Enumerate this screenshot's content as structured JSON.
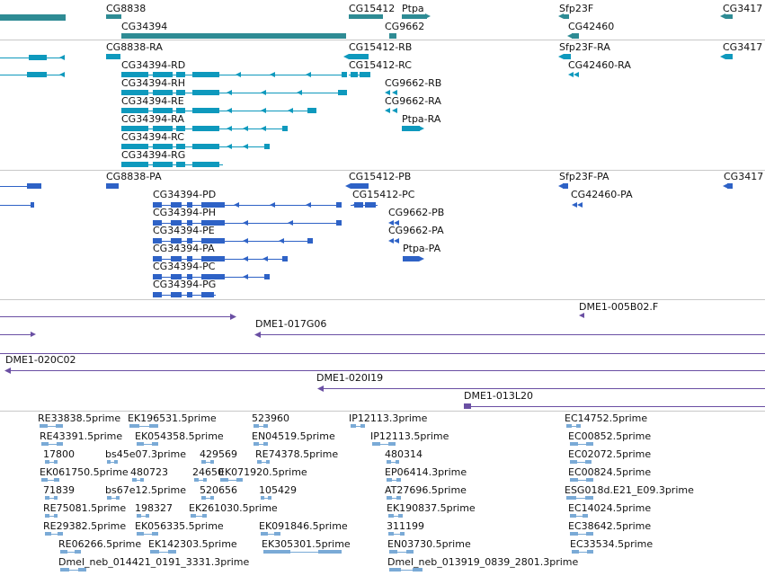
{
  "colors": {
    "gene": "#2e8b94",
    "mrna": "#0e99bd",
    "cds": "#2e62c6",
    "clone": "#6a4fa3",
    "est": "#7aaad6"
  },
  "tracks": {
    "gene": {
      "labels": [
        {
          "id": "cg8838",
          "text": "CG8838"
        },
        {
          "id": "cg15412",
          "text": "CG15412"
        },
        {
          "id": "ptpa",
          "text": "Ptpa"
        },
        {
          "id": "sfp23f",
          "text": "Sfp23F"
        },
        {
          "id": "cg3417",
          "text": "CG3417"
        },
        {
          "id": "cg34394",
          "text": "CG34394"
        },
        {
          "id": "cg9662",
          "text": "CG9662"
        },
        {
          "id": "cg42460",
          "text": "CG42460"
        }
      ]
    },
    "mrna": {
      "labels": [
        {
          "id": "cg8838-ra",
          "text": "CG8838-RA"
        },
        {
          "id": "cg15412-rb",
          "text": "CG15412-RB"
        },
        {
          "id": "sfp23f-ra",
          "text": "Sfp23F-RA"
        },
        {
          "id": "cg3417",
          "text": "CG3417"
        },
        {
          "id": "cg34394-rd",
          "text": "CG34394-RD"
        },
        {
          "id": "cg15412-rc",
          "text": "CG15412-RC"
        },
        {
          "id": "cg42460-ra",
          "text": "CG42460-RA"
        },
        {
          "id": "cg34394-rh",
          "text": "CG34394-RH"
        },
        {
          "id": "cg9662-rb",
          "text": "CG9662-RB"
        },
        {
          "id": "cg34394-re",
          "text": "CG34394-RE"
        },
        {
          "id": "cg9662-ra",
          "text": "CG9662-RA"
        },
        {
          "id": "cg34394-ra",
          "text": "CG34394-RA"
        },
        {
          "id": "ptpa-ra",
          "text": "Ptpa-RA"
        },
        {
          "id": "cg34394-rc",
          "text": "CG34394-RC"
        },
        {
          "id": "cg34394-rg",
          "text": "CG34394-RG"
        }
      ]
    },
    "protein": {
      "labels": [
        {
          "id": "cg8838-pa",
          "text": "CG8838-PA"
        },
        {
          "id": "cg15412-pb",
          "text": "CG15412-PB"
        },
        {
          "id": "sfp23f-pa",
          "text": "Sfp23F-PA"
        },
        {
          "id": "cg3417",
          "text": "CG3417"
        },
        {
          "id": "cg34394-pd",
          "text": "CG34394-PD"
        },
        {
          "id": "cg15412-pc",
          "text": "CG15412-PC"
        },
        {
          "id": "cg42460-pa",
          "text": "CG42460-PA"
        },
        {
          "id": "cg34394-ph",
          "text": "CG34394-PH"
        },
        {
          "id": "cg9662-pb",
          "text": "CG9662-PB"
        },
        {
          "id": "cg34394-pe",
          "text": "CG34394-PE"
        },
        {
          "id": "cg9662-pa",
          "text": "CG9662-PA"
        },
        {
          "id": "cg34394-pa",
          "text": "CG34394-PA"
        },
        {
          "id": "ptpa-pa",
          "text": "Ptpa-PA"
        },
        {
          "id": "cg34394-pc",
          "text": "CG34394-PC"
        },
        {
          "id": "cg34394-pg",
          "text": "CG34394-PG"
        }
      ]
    },
    "clone": {
      "labels": [
        {
          "id": "dme1-005b02",
          "text": "DME1-005B02.F"
        },
        {
          "id": "dme1-017g06",
          "text": "DME1-017G06"
        },
        {
          "id": "dme1-020c02",
          "text": "DME1-020C02"
        },
        {
          "id": "dme1-020i19",
          "text": "DME1-020I19"
        },
        {
          "id": "dme1-013l20",
          "text": "DME1-013L20"
        }
      ]
    },
    "est": {
      "labels": [
        {
          "id": "re33838",
          "text": "RE33838.5prime"
        },
        {
          "id": "ek196531",
          "text": "EK196531.5prime"
        },
        {
          "id": "n523960",
          "text": "523960"
        },
        {
          "id": "ip12113-3",
          "text": "IP12113.3prime"
        },
        {
          "id": "ec14752",
          "text": "EC14752.5prime"
        },
        {
          "id": "re43391",
          "text": "RE43391.5prime"
        },
        {
          "id": "ek054358",
          "text": "EK054358.5prime"
        },
        {
          "id": "en04519",
          "text": "EN04519.5prime"
        },
        {
          "id": "ip12113-5",
          "text": "IP12113.5prime"
        },
        {
          "id": "ec00852",
          "text": "EC00852.5prime"
        },
        {
          "id": "n17800",
          "text": "17800"
        },
        {
          "id": "bs45e07",
          "text": "bs45e07.3prime"
        },
        {
          "id": "n429569",
          "text": "429569"
        },
        {
          "id": "re74378",
          "text": "RE74378.5prime"
        },
        {
          "id": "n480314",
          "text": "480314"
        },
        {
          "id": "ec02072",
          "text": "EC02072.5prime"
        },
        {
          "id": "ek061750",
          "text": "EK061750.5prime"
        },
        {
          "id": "n4807232",
          "text": "480723"
        },
        {
          "id": "n24650",
          "text": "24650"
        },
        {
          "id": "ek071920",
          "text": "EK071920.5prime"
        },
        {
          "id": "ep06414",
          "text": "EP06414.3prime"
        },
        {
          "id": "ec00824",
          "text": "EC00824.5prime"
        },
        {
          "id": "n71839",
          "text": "71839"
        },
        {
          "id": "bs67e12",
          "text": "bs67e12.5prime"
        },
        {
          "id": "n520656",
          "text": "520656"
        },
        {
          "id": "n105429",
          "text": "105429"
        },
        {
          "id": "at27696",
          "text": "AT27696.5prime"
        },
        {
          "id": "esg018d",
          "text": "ESG018d.E21_E09.3prime"
        },
        {
          "id": "re75081",
          "text": "RE75081.5prime"
        },
        {
          "id": "n198327",
          "text": "198327"
        },
        {
          "id": "ek261030",
          "text": "EK261030.5prime"
        },
        {
          "id": "ek190837",
          "text": "EK190837.5prime"
        },
        {
          "id": "ec14024",
          "text": "EC14024.5prime"
        },
        {
          "id": "re29382",
          "text": "RE29382.5prime"
        },
        {
          "id": "ek056335",
          "text": "EK056335.5prime"
        },
        {
          "id": "ek091846",
          "text": "EK091846.5prime"
        },
        {
          "id": "n311199",
          "text": "311199"
        },
        {
          "id": "ec38642",
          "text": "EC38642.5prime"
        },
        {
          "id": "re06266",
          "text": "RE06266.5prime"
        },
        {
          "id": "ek142303",
          "text": "EK142303.5prime"
        },
        {
          "id": "ek305301",
          "text": "EK305301.5prime"
        },
        {
          "id": "en03730",
          "text": "EN03730.5prime"
        },
        {
          "id": "ec33534",
          "text": "EC33534.5prime"
        },
        {
          "id": "dmel-014421",
          "text": "Dmel_neb_014421_0191_3331.3prime"
        },
        {
          "id": "dmel-013919",
          "text": "Dmel_neb_013919_0839_2801.3prime"
        }
      ]
    }
  }
}
